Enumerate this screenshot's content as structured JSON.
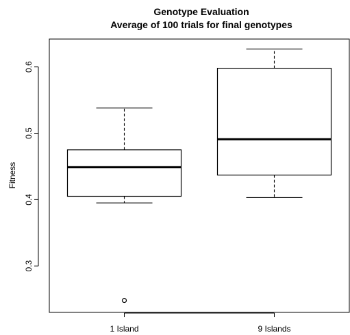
{
  "chart_data": {
    "type": "boxplot",
    "title": "Genotype Evaluation",
    "subtitle": "Average of 100 trials for final genotypes",
    "xlabel": "",
    "ylabel": "Fitness",
    "ylim": [
      0.23,
      0.642
    ],
    "y_ticks": [
      0.3,
      0.4,
      0.5,
      0.6
    ],
    "y_tick_labels": [
      "0.3",
      "0.4",
      "0.5",
      "0.6"
    ],
    "categories": [
      "1 Island",
      "9 Islands"
    ],
    "boxes": [
      {
        "category": "1 Island",
        "whisker_low": 0.395,
        "q1": 0.405,
        "median": 0.449,
        "q3": 0.475,
        "whisker_high": 0.538,
        "outliers": [
          0.248
        ]
      },
      {
        "category": "9 Islands",
        "whisker_low": 0.403,
        "q1": 0.437,
        "median": 0.491,
        "q3": 0.598,
        "whisker_high": 0.627,
        "outliers": []
      }
    ],
    "grid": false,
    "legend": "none"
  }
}
